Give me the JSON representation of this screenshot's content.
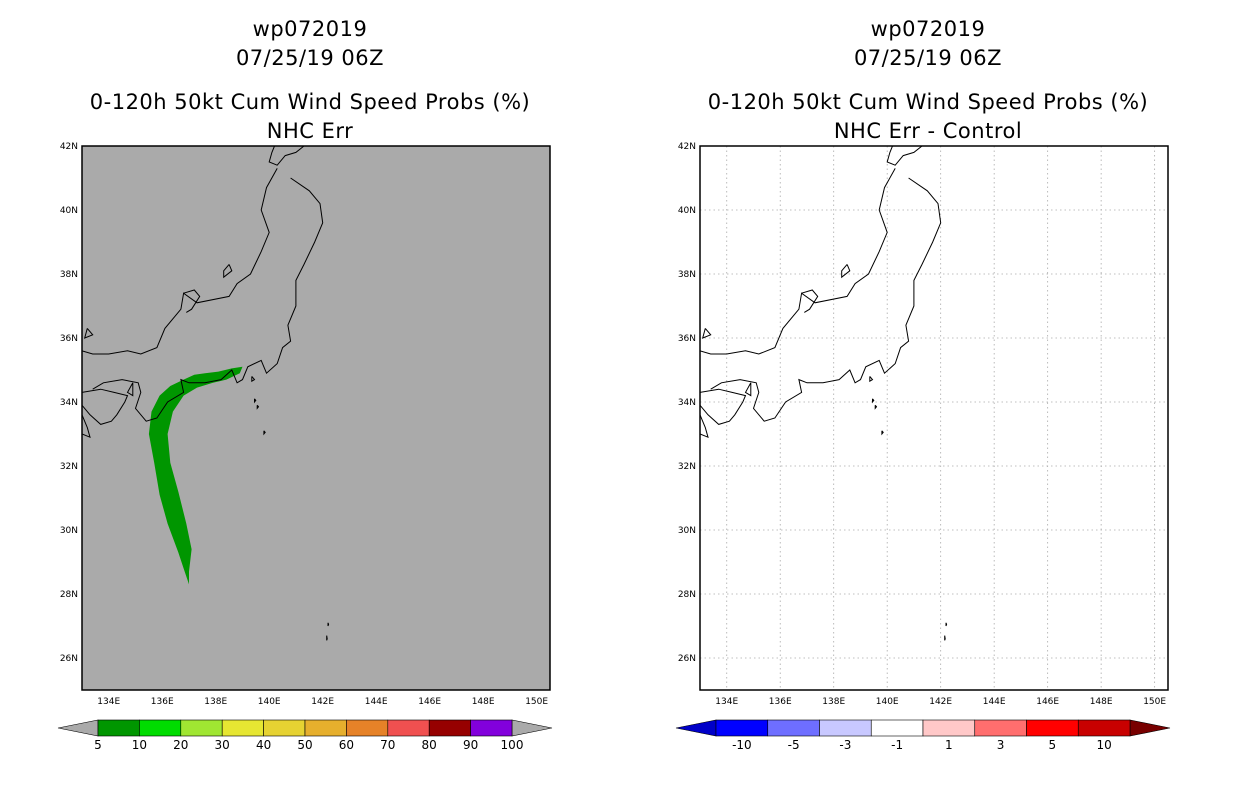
{
  "left_panel": {
    "title_lines": [
      "wp072019",
      "07/25/19 06Z",
      "0-120h 50kt Cum Wind Speed Probs (%)",
      "NHC Err"
    ],
    "lat_labels": [
      "42N",
      "40N",
      "38N",
      "36N",
      "34N",
      "32N",
      "30N",
      "28N",
      "26N"
    ],
    "lon_labels": [
      "134E",
      "136E",
      "138E",
      "140E",
      "142E",
      "144E",
      "146E",
      "148E",
      "150E"
    ],
    "background_color": "#aaaaaa",
    "colorbar": {
      "labels": [
        "5",
        "10",
        "20",
        "30",
        "40",
        "50",
        "60",
        "70",
        "80",
        "90",
        "100"
      ],
      "colors": [
        "#009600",
        "#00dc00",
        "#a0e632",
        "#e6e632",
        "#e6d232",
        "#e6af2d",
        "#e68228",
        "#f05050",
        "#960000",
        "#8200dc"
      ]
    }
  },
  "right_panel": {
    "title_lines": [
      "wp072019",
      "07/25/19 06Z",
      "0-120h 50kt Cum Wind Speed Probs (%)",
      "NHC Err - Control"
    ],
    "lat_labels": [
      "42N",
      "40N",
      "38N",
      "36N",
      "34N",
      "32N",
      "30N",
      "28N",
      "26N"
    ],
    "lon_labels": [
      "134E",
      "136E",
      "138E",
      "140E",
      "142E",
      "144E",
      "146E",
      "148E",
      "150E"
    ],
    "background_color": "#ffffff",
    "colorbar": {
      "labels": [
        "-10",
        "-5",
        "-3",
        "-1",
        "1",
        "3",
        "5",
        "10"
      ],
      "colors": [
        "#0000c8",
        "#0000ff",
        "#6e6eff",
        "#c8c8ff",
        "#ffffff",
        "#ffc8c8",
        "#ff6e6e",
        "#ff0000",
        "#c80000",
        "#780000"
      ]
    }
  },
  "map_extent": {
    "lon_min": 133,
    "lon_max": 150.5,
    "lat_min": 25,
    "lat_max": 42
  },
  "track_polygon_latlon": [
    [
      35.1,
      139.0
    ],
    [
      35.05,
      138.6
    ],
    [
      34.95,
      138.1
    ],
    [
      34.9,
      137.6
    ],
    [
      34.85,
      137.2
    ],
    [
      34.7,
      136.8
    ],
    [
      34.5,
      136.3
    ],
    [
      34.2,
      135.9
    ],
    [
      33.7,
      135.6
    ],
    [
      33.0,
      135.5
    ],
    [
      32.1,
      135.7
    ],
    [
      31.1,
      135.9
    ],
    [
      30.2,
      136.2
    ],
    [
      29.3,
      136.6
    ],
    [
      28.8,
      136.8
    ],
    [
      28.3,
      137.0
    ],
    [
      28.7,
      137.0
    ],
    [
      29.4,
      137.1
    ],
    [
      30.2,
      136.9
    ],
    [
      31.2,
      136.6
    ],
    [
      32.1,
      136.3
    ],
    [
      33.0,
      136.2
    ],
    [
      33.7,
      136.4
    ],
    [
      34.2,
      136.8
    ],
    [
      34.45,
      137.3
    ],
    [
      34.6,
      137.9
    ],
    [
      34.7,
      138.4
    ],
    [
      34.9,
      138.9
    ]
  ],
  "track_color": "#009600"
}
